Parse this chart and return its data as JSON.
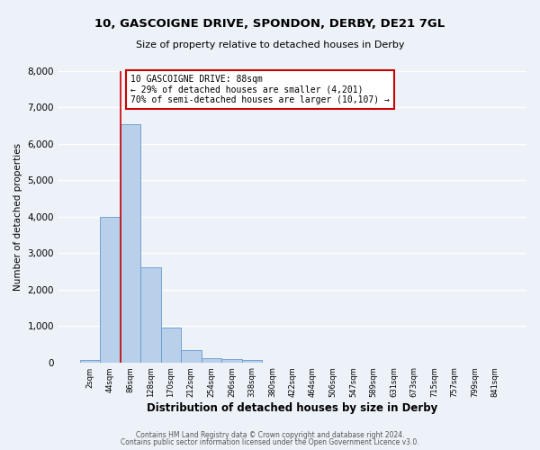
{
  "title": "10, GASCOIGNE DRIVE, SPONDON, DERBY, DE21 7GL",
  "subtitle": "Size of property relative to detached houses in Derby",
  "xlabel": "Distribution of detached houses by size in Derby",
  "ylabel": "Number of detached properties",
  "bin_labels": [
    "2sqm",
    "44sqm",
    "86sqm",
    "128sqm",
    "170sqm",
    "212sqm",
    "254sqm",
    "296sqm",
    "338sqm",
    "380sqm",
    "422sqm",
    "464sqm",
    "506sqm",
    "547sqm",
    "589sqm",
    "631sqm",
    "673sqm",
    "715sqm",
    "757sqm",
    "799sqm",
    "841sqm"
  ],
  "bin_values": [
    60,
    4000,
    6550,
    2600,
    960,
    330,
    120,
    80,
    60,
    0,
    0,
    0,
    0,
    0,
    0,
    0,
    0,
    0,
    0,
    0,
    0
  ],
  "bar_color": "#b8d0ea",
  "bar_edge_color": "#6699cc",
  "annotation_title": "10 GASCOIGNE DRIVE: 88sqm",
  "annotation_line1": "← 29% of detached houses are smaller (4,201)",
  "annotation_line2": "70% of semi-detached houses are larger (10,107) →",
  "annotation_box_color": "#ffffff",
  "annotation_border_color": "#cc0000",
  "red_line_color": "#cc0000",
  "ylim": [
    0,
    8000
  ],
  "yticks": [
    0,
    1000,
    2000,
    3000,
    4000,
    5000,
    6000,
    7000,
    8000
  ],
  "footer1": "Contains HM Land Registry data © Crown copyright and database right 2024.",
  "footer2": "Contains public sector information licensed under the Open Government Licence v3.0.",
  "bg_color": "#edf2f9",
  "plot_bg_color": "#edf2f9",
  "grid_color": "#ffffff"
}
